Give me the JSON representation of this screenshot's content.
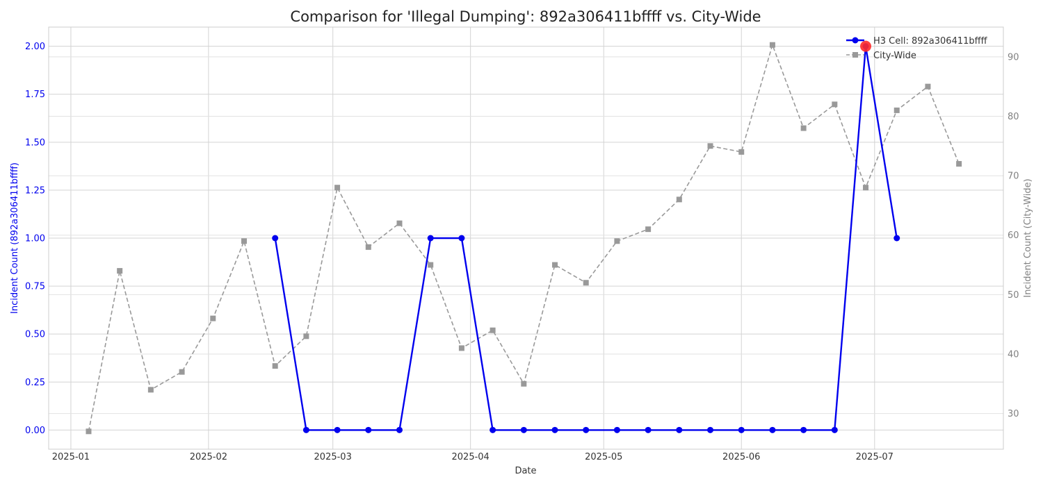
{
  "chart_data": {
    "type": "line",
    "title": "Comparison for 'Illegal Dumping': 892a306411bffff vs. City-Wide",
    "xlabel": "Date",
    "ylabel_left": "Incident Count (892a306411bffff)",
    "ylabel_right": "Incident Count (City-Wide)",
    "x_ticks": [
      "2025-01",
      "2025-02",
      "2025-03",
      "2025-04",
      "2025-05",
      "2025-06",
      "2025-07"
    ],
    "x_tick_dates": [
      "2025-01-01",
      "2025-02-01",
      "2025-03-01",
      "2025-04-01",
      "2025-05-01",
      "2025-06-01",
      "2025-07-01"
    ],
    "xlim": [
      "2024-12-27",
      "2025-07-30"
    ],
    "y_left_ticks": [
      "0.00",
      "0.25",
      "0.50",
      "0.75",
      "1.00",
      "1.25",
      "1.50",
      "1.75",
      "2.00"
    ],
    "y_left_lim": [
      -0.1,
      2.1
    ],
    "y_right_ticks": [
      "30",
      "40",
      "50",
      "60",
      "70",
      "80",
      "90"
    ],
    "y_right_lim": [
      24,
      95
    ],
    "grid": true,
    "legend_position": "top-right",
    "series": [
      {
        "name": "H3 Cell: 892a306411bffff",
        "axis": "left",
        "color": "#0000ee",
        "style": "solid",
        "marker": "circle",
        "x": [
          "2025-02-16",
          "2025-02-23",
          "2025-03-02",
          "2025-03-09",
          "2025-03-16",
          "2025-03-23",
          "2025-03-30",
          "2025-04-06",
          "2025-04-13",
          "2025-04-20",
          "2025-04-27",
          "2025-05-04",
          "2025-05-11",
          "2025-05-18",
          "2025-05-25",
          "2025-06-01",
          "2025-06-08",
          "2025-06-15",
          "2025-06-22",
          "2025-06-29",
          "2025-07-06"
        ],
        "values": [
          1,
          0,
          0,
          0,
          0,
          1,
          1,
          0,
          0,
          0,
          0,
          0,
          0,
          0,
          0,
          0,
          0,
          0,
          0,
          2,
          1
        ]
      },
      {
        "name": "City-Wide",
        "axis": "right",
        "color": "#999999",
        "style": "dashed",
        "marker": "square",
        "x": [
          "2025-01-05",
          "2025-01-12",
          "2025-01-19",
          "2025-01-26",
          "2025-02-02",
          "2025-02-09",
          "2025-02-16",
          "2025-02-23",
          "2025-03-02",
          "2025-03-09",
          "2025-03-16",
          "2025-03-23",
          "2025-03-30",
          "2025-04-06",
          "2025-04-13",
          "2025-04-20",
          "2025-04-27",
          "2025-05-04",
          "2025-05-11",
          "2025-05-18",
          "2025-05-25",
          "2025-06-01",
          "2025-06-08",
          "2025-06-15",
          "2025-06-22",
          "2025-06-29",
          "2025-07-06",
          "2025-07-13",
          "2025-07-20"
        ],
        "values": [
          27,
          54,
          34,
          37,
          46,
          59,
          38,
          43,
          68,
          58,
          62,
          55,
          41,
          44,
          35,
          55,
          52,
          59,
          61,
          66,
          75,
          74,
          92,
          78,
          82,
          68,
          81,
          85,
          72
        ]
      }
    ],
    "highlight": {
      "x": "2025-06-29",
      "value": 2,
      "axis": "left",
      "color": "#ff2a2a"
    }
  }
}
